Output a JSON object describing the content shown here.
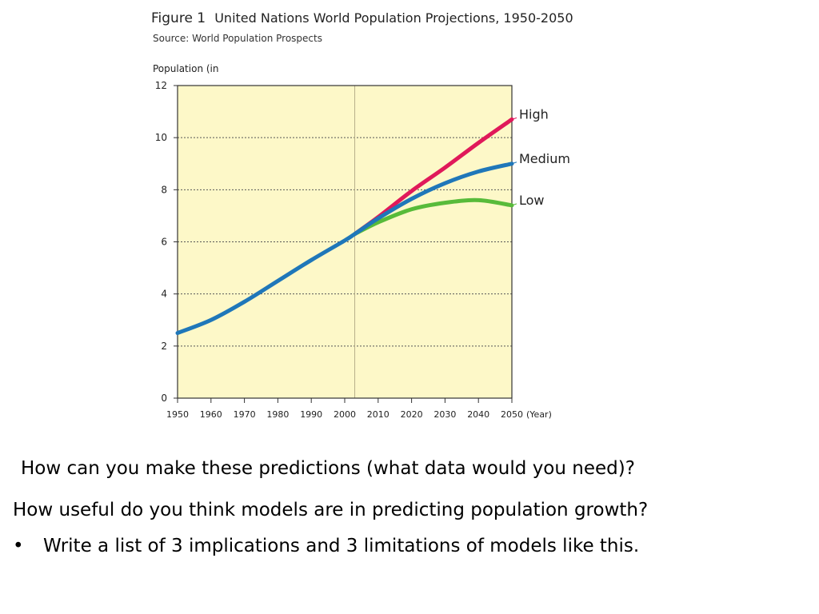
{
  "figure": {
    "label": "Figure 1",
    "title": "United Nations World Population Projections, 1950-2050",
    "source": "Source: World Population Prospects"
  },
  "chart_data": {
    "type": "line",
    "ylabel": "Population (in",
    "xlabel_unit": "(Year)",
    "xlim": [
      1950,
      2050
    ],
    "ylim": [
      0,
      12
    ],
    "x_ticks": [
      1950,
      1960,
      1970,
      1980,
      1990,
      2000,
      2010,
      2020,
      2030,
      2040,
      2050
    ],
    "y_ticks": [
      0,
      2,
      4,
      6,
      8,
      10,
      12
    ],
    "grid": "horizontal dashed",
    "divider_x": 2003,
    "background": "#fdf8c8",
    "series": [
      {
        "name": "High",
        "color": "#e0195a",
        "x": [
          2003,
          2010,
          2020,
          2030,
          2040,
          2050
        ],
        "y": [
          6.3,
          6.95,
          7.95,
          8.85,
          9.8,
          10.7
        ]
      },
      {
        "name": "Medium",
        "color": "#1f77b9",
        "x": [
          1950,
          1960,
          1970,
          1980,
          1990,
          2000,
          2003,
          2010,
          2020,
          2030,
          2040,
          2050
        ],
        "y": [
          2.5,
          3.0,
          3.7,
          4.5,
          5.3,
          6.05,
          6.3,
          6.9,
          7.65,
          8.25,
          8.7,
          9.0
        ]
      },
      {
        "name": "Low",
        "color": "#58bb3a",
        "x": [
          2003,
          2010,
          2020,
          2030,
          2040,
          2050
        ],
        "y": [
          6.3,
          6.75,
          7.25,
          7.5,
          7.6,
          7.4
        ]
      }
    ]
  },
  "questions": {
    "q1": "How can you make these predictions (what data would you need)?",
    "q2": "How useful do you think models are in predicting population growth?",
    "bullet": "•",
    "q3": "Write a list of 3 implications and 3 limitations of models like this."
  }
}
